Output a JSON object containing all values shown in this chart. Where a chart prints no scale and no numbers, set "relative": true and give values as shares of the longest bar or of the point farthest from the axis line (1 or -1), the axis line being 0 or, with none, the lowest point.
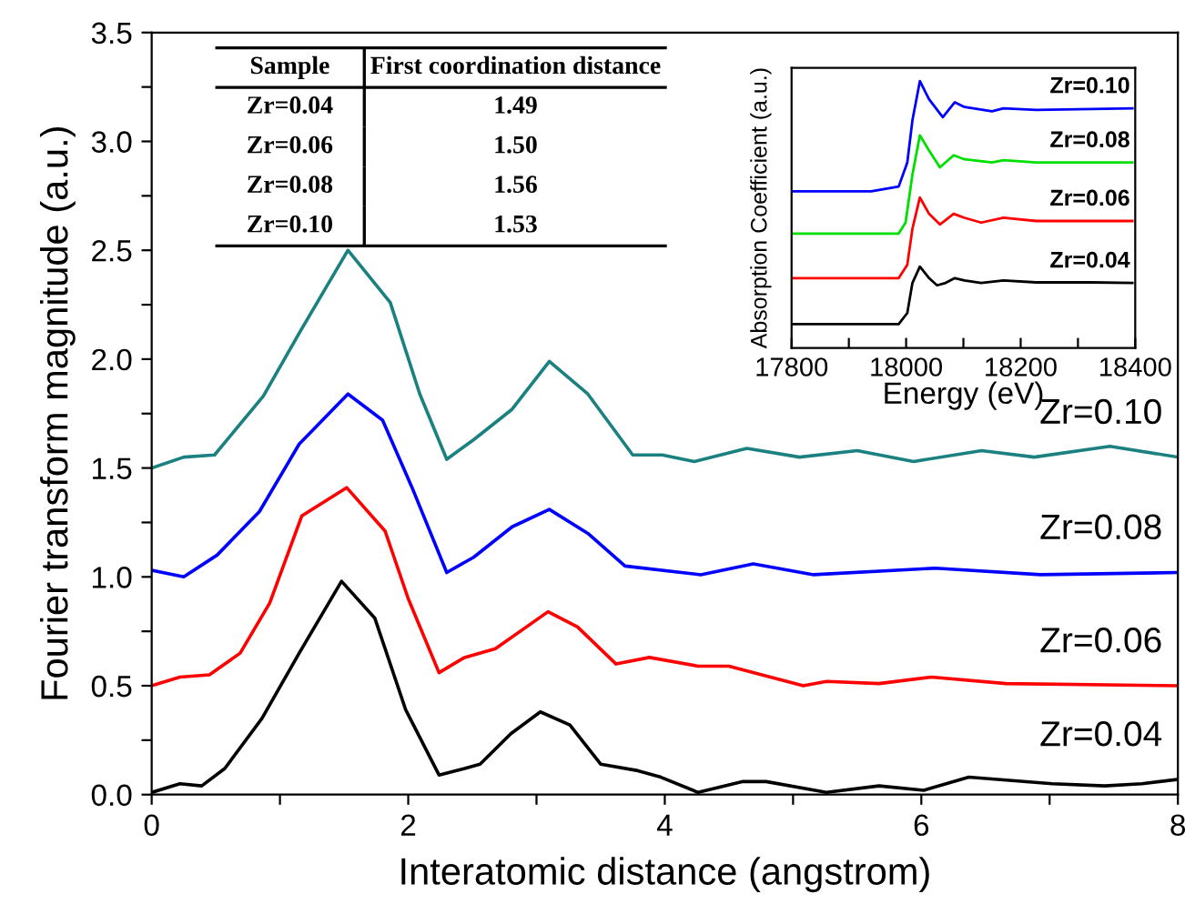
{
  "chart_data": [
    {
      "type": "line",
      "xlabel": "Interatomic distance (angstrom)",
      "ylabel": "Fourier transform magnitude (a.u.)",
      "xlim": [
        0,
        8
      ],
      "ylim": [
        0,
        3.5
      ],
      "xticks": [
        0,
        {
          "value": 1,
          "label": null
        },
        2,
        {
          "value": 3,
          "label": null
        },
        4,
        {
          "value": 5,
          "label": null
        },
        6,
        {
          "value": 7,
          "label": null
        },
        8
      ],
      "yticks": [
        "0.0",
        {
          "value": 0.25,
          "label": null
        },
        {
          "value": 0.5,
          "label": "0.5"
        },
        {
          "value": 0.75,
          "label": null
        },
        {
          "value": 1.0,
          "label": "1.0"
        },
        {
          "value": 1.25,
          "label": null
        },
        {
          "value": 1.5,
          "label": "1.5"
        },
        {
          "value": 1.75,
          "label": null
        },
        {
          "value": 2.0,
          "label": "2.0"
        },
        {
          "value": 2.25,
          "label": null
        },
        {
          "value": 2.5,
          "label": "2.5"
        },
        {
          "value": 2.75,
          "label": null
        },
        {
          "value": 3.0,
          "label": "3.0"
        },
        {
          "value": 3.25,
          "label": null
        },
        {
          "value": 3.5,
          "label": "3.5"
        }
      ],
      "grid": false,
      "legend": false,
      "annotations": [
        "Sample",
        "First coordination distance",
        "Zr=0.04",
        "1.49",
        "Zr=0.06",
        "1.50",
        "Zr=0.08",
        "1.56",
        "Zr=0.10",
        "1.53"
      ],
      "series": [
        {
          "name": "Zr=0.10",
          "color": "#1a8080",
          "x": [
            0,
            0.25,
            0.49,
            0.87,
            1.16,
            1.53,
            1.86,
            2.09,
            2.3,
            2.51,
            2.81,
            3.1,
            3.4,
            3.75,
            3.98,
            4.23,
            4.64,
            5.05,
            5.5,
            5.94,
            6.47,
            6.88,
            7.47,
            8.0
          ],
          "values": [
            1.5,
            1.55,
            1.56,
            1.83,
            2.13,
            2.5,
            2.26,
            1.84,
            1.54,
            1.63,
            1.77,
            1.99,
            1.84,
            1.56,
            1.56,
            1.53,
            1.59,
            1.55,
            1.58,
            1.53,
            1.58,
            1.55,
            1.6,
            1.55
          ]
        },
        {
          "name": "Zr=0.08",
          "color": "#0000ff",
          "x": [
            0,
            0.25,
            0.51,
            0.84,
            1.15,
            1.53,
            1.8,
            2.03,
            2.3,
            2.51,
            2.81,
            3.1,
            3.4,
            3.69,
            4.28,
            4.69,
            5.16,
            6.11,
            6.93,
            8.0
          ],
          "values": [
            1.03,
            1.0,
            1.1,
            1.3,
            1.61,
            1.84,
            1.72,
            1.41,
            1.02,
            1.09,
            1.23,
            1.31,
            1.2,
            1.05,
            1.01,
            1.06,
            1.01,
            1.04,
            1.01,
            1.02
          ]
        },
        {
          "name": "Zr=0.06",
          "color": "#ff0000",
          "x": [
            0,
            0.22,
            0.45,
            0.69,
            0.92,
            1.17,
            1.52,
            1.82,
            2.0,
            2.24,
            2.44,
            2.68,
            3.09,
            3.32,
            3.62,
            3.88,
            4.26,
            4.5,
            5.08,
            5.26,
            5.67,
            6.08,
            6.66,
            8.0
          ],
          "values": [
            0.5,
            0.54,
            0.55,
            0.65,
            0.88,
            1.28,
            1.41,
            1.21,
            0.9,
            0.56,
            0.63,
            0.67,
            0.84,
            0.77,
            0.6,
            0.63,
            0.59,
            0.59,
            0.5,
            0.52,
            0.51,
            0.54,
            0.51,
            0.5
          ]
        },
        {
          "name": "Zr=0.04",
          "color": "#000000",
          "x": [
            0,
            0.22,
            0.39,
            0.57,
            0.86,
            1.15,
            1.48,
            1.74,
            1.98,
            2.24,
            2.44,
            2.56,
            2.8,
            3.03,
            3.26,
            3.5,
            3.79,
            3.97,
            4.26,
            4.61,
            4.79,
            5.26,
            5.67,
            6.02,
            6.37,
            7.02,
            7.43,
            7.72,
            8.0
          ],
          "values": [
            0.01,
            0.05,
            0.04,
            0.12,
            0.35,
            0.65,
            0.98,
            0.81,
            0.39,
            0.09,
            0.12,
            0.14,
            0.28,
            0.38,
            0.32,
            0.14,
            0.11,
            0.08,
            0.01,
            0.06,
            0.06,
            0.01,
            0.04,
            0.02,
            0.08,
            0.05,
            0.04,
            0.05,
            0.07
          ]
        }
      ]
    },
    {
      "type": "line",
      "xlabel": "Energy (eV)",
      "ylabel": "Absorption Coefficient (a.u.)",
      "relative": true,
      "tick_labels": "x",
      "xlim": [
        17800,
        18400
      ],
      "xticks": [
        17800,
        {
          "value": 17900,
          "label": null
        },
        18000,
        {
          "value": 18100,
          "label": null
        },
        18200,
        {
          "value": 18300,
          "label": null
        },
        18400
      ],
      "grid": false,
      "legend": false,
      "series": [
        {
          "name": "Zr=0.10",
          "color": "#0000ff",
          "x": [
            17800,
            17939,
            17987,
            18002,
            18011,
            18024,
            18040,
            18064,
            18085,
            18102,
            18150,
            18170,
            18227,
            18395
          ],
          "values": [
            0.587,
            0.587,
            0.605,
            0.695,
            0.853,
            1.0,
            0.932,
            0.865,
            0.921,
            0.903,
            0.887,
            0.898,
            0.892,
            0.898
          ]
        },
        {
          "name": "Zr=0.08",
          "color": "#00e000",
          "x": [
            17800,
            17987,
            17999,
            18011,
            18024,
            18040,
            18059,
            18083,
            18102,
            18150,
            18170,
            18227,
            18395
          ],
          "values": [
            0.429,
            0.429,
            0.47,
            0.65,
            0.797,
            0.74,
            0.677,
            0.722,
            0.707,
            0.695,
            0.704,
            0.695,
            0.695
          ]
        },
        {
          "name": "Zr=0.06",
          "color": "#ff0000",
          "x": [
            17800,
            17987,
            18002,
            18011,
            18024,
            18040,
            18059,
            18083,
            18102,
            18131,
            18170,
            18227,
            18395
          ],
          "values": [
            0.262,
            0.262,
            0.312,
            0.447,
            0.564,
            0.503,
            0.463,
            0.503,
            0.488,
            0.47,
            0.488,
            0.476,
            0.476
          ]
        },
        {
          "name": "Zr=0.04",
          "color": "#000000",
          "x": [
            17800,
            17987,
            18002,
            18011,
            18024,
            18040,
            18054,
            18069,
            18085,
            18102,
            18131,
            18170,
            18227,
            18323,
            18395
          ],
          "values": [
            0.09,
            0.09,
            0.131,
            0.244,
            0.305,
            0.262,
            0.235,
            0.244,
            0.262,
            0.253,
            0.244,
            0.253,
            0.246,
            0.246,
            0.244
          ]
        }
      ]
    }
  ]
}
